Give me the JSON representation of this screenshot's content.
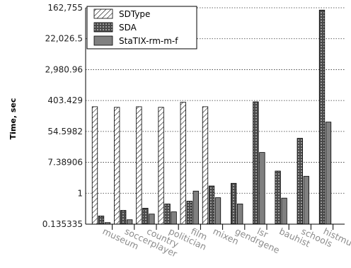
{
  "chart_data": {
    "type": "bar",
    "title": "",
    "xlabel": "",
    "ylabel": "Time, sec",
    "yscale": "log",
    "yticks": [
      0.135335,
      1,
      7.38906,
      54.5982,
      403.429,
      2980.96,
      22026.5,
      162755
    ],
    "ytick_labels": [
      "0.135335",
      "1",
      "7.38906",
      "54.5982",
      "403.429",
      "2,980.96",
      "22,026.5",
      "162,755"
    ],
    "ylim": [
      0.135335,
      162755
    ],
    "grid": "horizontal dotted",
    "legend_position": "top-left",
    "categories": [
      "museum",
      "soccerplayer",
      "country",
      "politician",
      "film",
      "mixen",
      "gendrgene",
      "lsr",
      "bauhist",
      "schools",
      "histmu"
    ],
    "series": [
      {
        "name": "SDType",
        "pattern": "hatch",
        "color": "#ffffff",
        "values": [
          270,
          260,
          270,
          260,
          360,
          270,
          null,
          null,
          null,
          null,
          null
        ]
      },
      {
        "name": "SDA",
        "pattern": "dots",
        "color": "#4a4a4a",
        "values": [
          0.23,
          0.33,
          0.38,
          0.5,
          0.6,
          1.6,
          1.9,
          370,
          4.2,
          35,
          140000
        ]
      },
      {
        "name": "StaTIX-rm-m-f",
        "pattern": "solid",
        "color": "#808080",
        "values": [
          0.15,
          0.18,
          0.26,
          0.3,
          1.15,
          0.75,
          0.5,
          14,
          0.73,
          3,
          100
        ]
      }
    ]
  }
}
